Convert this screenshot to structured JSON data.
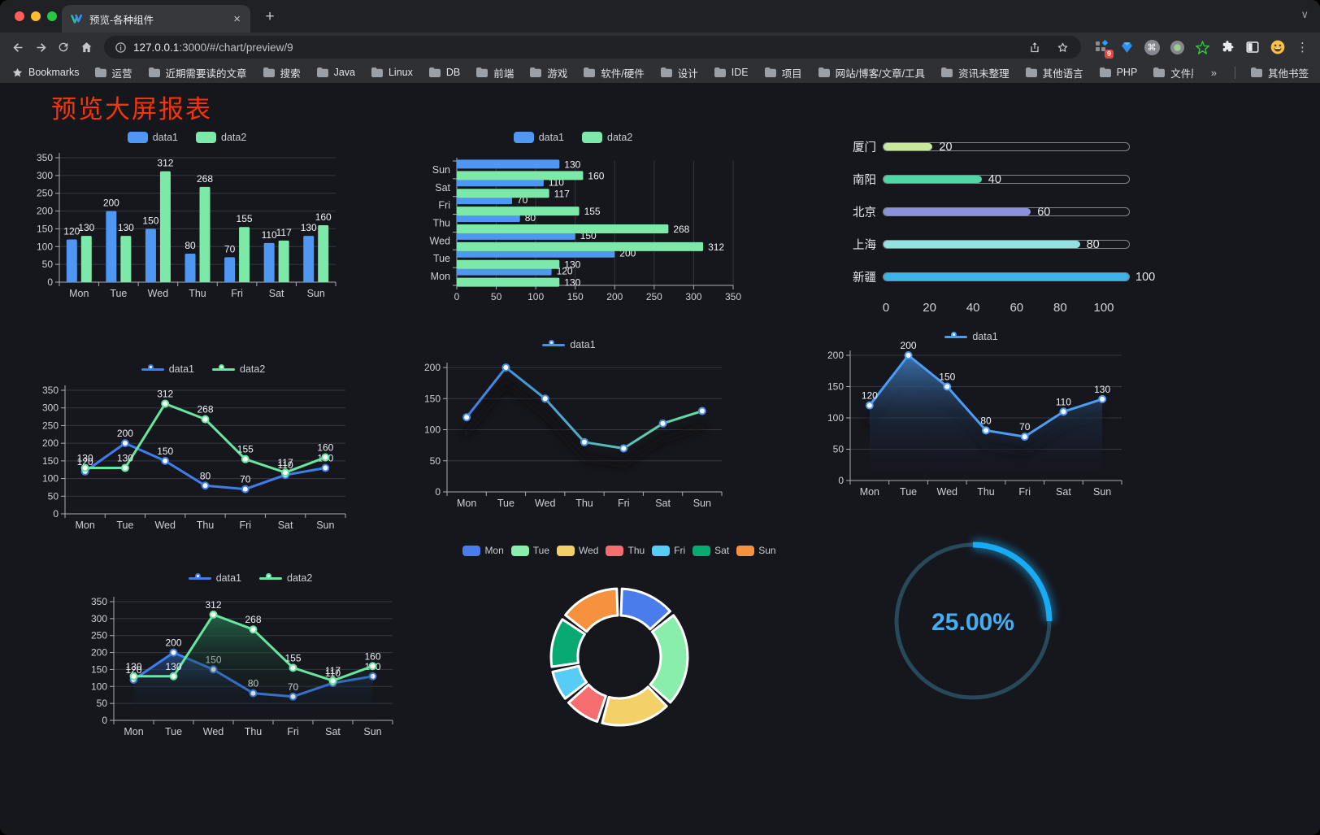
{
  "browser": {
    "tab": {
      "title": "预览-各种组件"
    },
    "url_host": "127.0.0.1",
    "url_rest": ":3000/#/chart/preview/9",
    "bookmarks_label": "Bookmarks",
    "bookmarks": [
      "运营",
      "近期需要读的文章",
      "搜索",
      "Java",
      "Linux",
      "DB",
      "前端",
      "游戏",
      "软件/硬件",
      "设计",
      "IDE",
      "项目",
      "网站/博客/文章/工具",
      "资讯未整理",
      "其他语言",
      "PHP",
      "文件服务器"
    ],
    "bookmarks_overflow": "»",
    "other_bookmarks_label": "其他书签",
    "extension_badge": "9"
  },
  "page": {
    "title": "预览大屏报表",
    "title_color": "#f5340d",
    "background": "#16161d"
  },
  "chart_data": [
    {
      "id": "bar-grouped",
      "type": "bar",
      "variant": "grouped-vertical",
      "categories": [
        "Mon",
        "Tue",
        "Wed",
        "Thu",
        "Fri",
        "Sat",
        "Sun"
      ],
      "series": [
        {
          "name": "data1",
          "color": "#4e97f3",
          "values": [
            120,
            200,
            150,
            80,
            70,
            110,
            130
          ]
        },
        {
          "name": "data2",
          "color": "#7ce9a8",
          "values": [
            130,
            130,
            312,
            268,
            155,
            117,
            160
          ]
        }
      ],
      "ylim": [
        0,
        350
      ],
      "interval": 50,
      "grid": true,
      "legend_position": "top",
      "labels": true
    },
    {
      "id": "hbar-grouped",
      "type": "bar",
      "variant": "grouped-horizontal",
      "categories": [
        "Mon",
        "Tue",
        "Wed",
        "Thu",
        "Fri",
        "Sat",
        "Sun"
      ],
      "series": [
        {
          "name": "data1",
          "color": "#4e97f3",
          "values": [
            120,
            200,
            150,
            80,
            70,
            110,
            130
          ]
        },
        {
          "name": "data2",
          "color": "#7ce9a8",
          "values": [
            130,
            130,
            312,
            268,
            155,
            117,
            160
          ]
        }
      ],
      "xlim": [
        0,
        350
      ],
      "interval": 50,
      "grid": true,
      "legend_position": "top",
      "labels": true
    },
    {
      "id": "progress-city",
      "type": "bar",
      "variant": "progress",
      "max": 100,
      "axis_ticks": [
        0,
        20,
        40,
        60,
        80,
        100
      ],
      "items": [
        {
          "label": "厦门",
          "value": 20,
          "color": "#c8e89b"
        },
        {
          "label": "南阳",
          "value": 40,
          "color": "#50d5a5"
        },
        {
          "label": "北京",
          "value": 60,
          "color": "#8a92dc"
        },
        {
          "label": "上海",
          "value": 80,
          "color": "#93e2df"
        },
        {
          "label": "新疆",
          "value": 100,
          "color": "#3fb3e5"
        }
      ]
    },
    {
      "id": "line-two-series",
      "type": "line",
      "variant": "line",
      "categories": [
        "Mon",
        "Tue",
        "Wed",
        "Thu",
        "Fri",
        "Sat",
        "Sun"
      ],
      "series": [
        {
          "name": "data1",
          "color": "#3d7eeb",
          "values": [
            120,
            200,
            150,
            80,
            70,
            110,
            130
          ]
        },
        {
          "name": "data2",
          "color": "#67e69d",
          "values": [
            130,
            130,
            312,
            268,
            155,
            117,
            160
          ]
        }
      ],
      "ylim": [
        0,
        350
      ],
      "interval": 50,
      "labels": true,
      "legend_position": "top"
    },
    {
      "id": "line-gradient",
      "type": "line",
      "variant": "gradient-line",
      "categories": [
        "Mon",
        "Tue",
        "Wed",
        "Thu",
        "Fri",
        "Sat",
        "Sun"
      ],
      "series": [
        {
          "name": "data1",
          "color": "#4a8fe8",
          "marker": "#4a8fe8",
          "values": [
            120,
            200,
            150,
            80,
            70,
            110,
            130
          ]
        }
      ],
      "gradient": [
        "#3f7fea",
        "#63e39a"
      ],
      "ylim": [
        0,
        200
      ],
      "interval": 50,
      "labels": false,
      "shadow": true,
      "legend_position": "top"
    },
    {
      "id": "area-blue",
      "type": "area",
      "variant": "area",
      "categories": [
        "Mon",
        "Tue",
        "Wed",
        "Thu",
        "Fri",
        "Sat",
        "Sun"
      ],
      "series": [
        {
          "name": "data1",
          "color": "#4b9cf5",
          "values": [
            120,
            200,
            150,
            80,
            70,
            110,
            130
          ],
          "area": [
            "rgba(62,118,180,0.95)",
            "rgba(32,55,85,0.45)",
            "rgba(18,26,40,0.02)"
          ]
        }
      ],
      "ylim": [
        0,
        200
      ],
      "interval": 50,
      "labels": true,
      "shadow": true,
      "legend_position": "top"
    },
    {
      "id": "area-two-series",
      "type": "area",
      "variant": "area",
      "categories": [
        "Mon",
        "Tue",
        "Wed",
        "Thu",
        "Fri",
        "Sat",
        "Sun"
      ],
      "series": [
        {
          "name": "data1",
          "color": "#3d7eeb",
          "values": [
            120,
            200,
            150,
            80,
            70,
            110,
            130
          ],
          "area": [
            "rgba(43,88,152,0.8)",
            "rgba(25,40,70,0.25)",
            "rgba(15,20,35,0.02)"
          ]
        },
        {
          "name": "data2",
          "color": "#67e69d",
          "values": [
            130,
            130,
            312,
            268,
            155,
            117,
            160
          ],
          "area": [
            "rgba(38,110,78,0.85)",
            "rgba(25,60,48,0.3)",
            "rgba(15,25,22,0.02)"
          ]
        }
      ],
      "ylim": [
        0,
        350
      ],
      "interval": 50,
      "labels": true,
      "legend_position": "top"
    },
    {
      "id": "donut-week",
      "type": "pie",
      "variant": "donut",
      "items": [
        {
          "label": "Mon",
          "value": 120,
          "color": "#4b7cec"
        },
        {
          "label": "Tue",
          "value": 200,
          "color": "#89eeab"
        },
        {
          "label": "Wed",
          "value": 150,
          "color": "#f4d166"
        },
        {
          "label": "Thu",
          "value": 80,
          "color": "#f56d6f"
        },
        {
          "label": "Fri",
          "value": 70,
          "color": "#57ccf5"
        },
        {
          "label": "Sat",
          "value": 110,
          "color": "#09a973"
        },
        {
          "label": "Sun",
          "value": 130,
          "color": "#f6913d"
        }
      ],
      "legend_position": "top",
      "border_color": "#ffffff"
    },
    {
      "id": "gauge-percent",
      "type": "pie",
      "variant": "gauge",
      "percent": 25,
      "value_label": "25.00%",
      "color": "#18aaf2",
      "track_color": "#27495a",
      "text_color": "#45aef2"
    }
  ]
}
